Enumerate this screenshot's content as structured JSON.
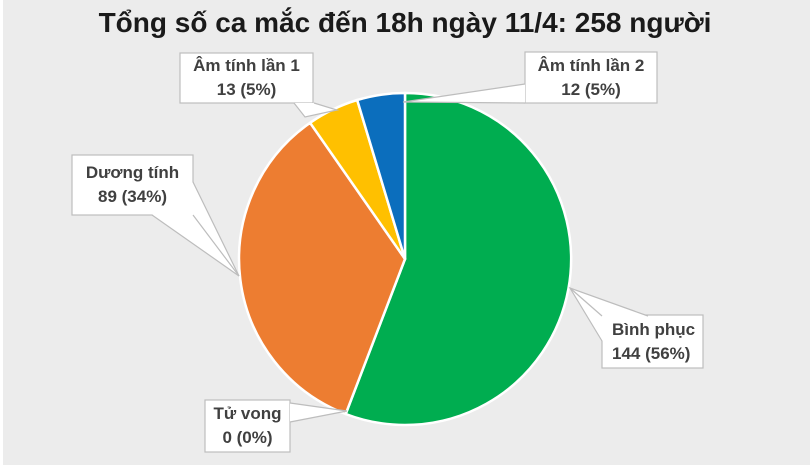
{
  "title": "Tổng số ca mắc đến 18h ngày 11/4: 258 người",
  "styles": {
    "panel_background": "#ECECEC",
    "callout_fill": "#FFFFFF",
    "callout_border": "#BDBDBD",
    "label_text_color": "#404040",
    "title_color": "#1A1A1A",
    "slice_separator": "#FFFFFF"
  },
  "chart_data": {
    "type": "pie",
    "title": "Tổng số ca mắc đến 18h ngày 11/4: 258 người",
    "total": 258,
    "total_unit": "người",
    "start_angle_deg": 0,
    "direction": "clockwise",
    "legend_position": "data-callouts",
    "slices": [
      {
        "label": "Bình phục",
        "value": 144,
        "percent": 56,
        "value_label": "144 (56%)",
        "color": "#00AD50"
      },
      {
        "label": "Tử vong",
        "value": 0,
        "percent": 0,
        "value_label": "0 (0%)",
        "color": null
      },
      {
        "label": "Dương tính",
        "value": 89,
        "percent": 34,
        "value_label": "89 (34%)",
        "color": "#ED7D31"
      },
      {
        "label": "Âm tính lần 1",
        "value": 13,
        "percent": 5,
        "value_label": "13 (5%)",
        "color": "#FFC000"
      },
      {
        "label": "Âm tính lần 2",
        "value": 12,
        "percent": 5,
        "value_label": "12 (5%)",
        "color": "#0B6EBD"
      }
    ]
  }
}
